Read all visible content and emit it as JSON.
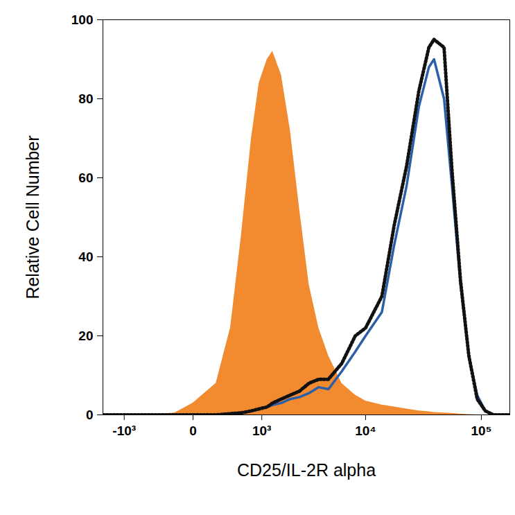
{
  "chart_data": {
    "type": "line",
    "xlabel": "CD25/IL-2R alpha",
    "ylabel": "Relative Cell Number",
    "x": [
      -1700,
      -1000,
      -500,
      -150,
      0,
      200,
      380,
      550,
      750,
      930,
      1150,
      1320,
      1630,
      2010,
      2480,
      3060,
      3770,
      4640,
      6130,
      8110,
      10000,
      13900,
      17800,
      22800,
      29100,
      35500,
      39300,
      47900,
      56000,
      66300,
      78100,
      92100,
      108000,
      127000,
      175000
    ],
    "series": [
      {
        "type": "area",
        "color": "#f28a30",
        "line_style": "solid",
        "values": [
          0,
          0,
          0,
          0.5,
          3,
          8,
          22,
          45,
          70,
          84,
          90,
          92,
          86,
          72,
          52,
          33,
          22,
          15,
          8,
          5,
          3.5,
          2.5,
          2,
          1.5,
          1,
          0.8,
          0.6,
          0.5,
          0.4,
          0.2,
          0.1,
          0,
          0,
          0,
          0
        ]
      },
      {
        "type": "line",
        "color": "#2b5fa8",
        "line_style": "solid",
        "values": [
          0,
          0,
          0,
          0,
          0,
          0,
          0.3,
          0.5,
          1,
          1.5,
          2,
          2.5,
          3,
          4,
          4.5,
          5.5,
          7,
          6.5,
          11,
          16,
          20,
          26,
          43,
          58,
          78,
          88,
          90,
          80,
          58,
          33,
          15,
          5,
          1,
          0,
          0
        ]
      },
      {
        "type": "line",
        "color": "#111111",
        "line_style": "dotted",
        "values": [
          0,
          0,
          0,
          0,
          0,
          0,
          0.3,
          0.5,
          1,
          1.5,
          2,
          3,
          4,
          5,
          6,
          8,
          9,
          9,
          13,
          20,
          22,
          30,
          48,
          63,
          82,
          93,
          95,
          93,
          62,
          34,
          15,
          4,
          1,
          0,
          0
        ]
      }
    ],
    "xlim": [
      -1700,
      175000
    ],
    "xticks": [
      {
        "value": -1000,
        "label": "-10³"
      },
      0,
      {
        "value": 1000,
        "label": "10³"
      },
      {
        "value": 10000,
        "label": "10⁴"
      },
      {
        "value": 100000,
        "label": "10⁵"
      }
    ],
    "ylim": [
      0,
      100
    ],
    "yticks": [
      0,
      20,
      40,
      60,
      80,
      100
    ],
    "grid": false
  }
}
